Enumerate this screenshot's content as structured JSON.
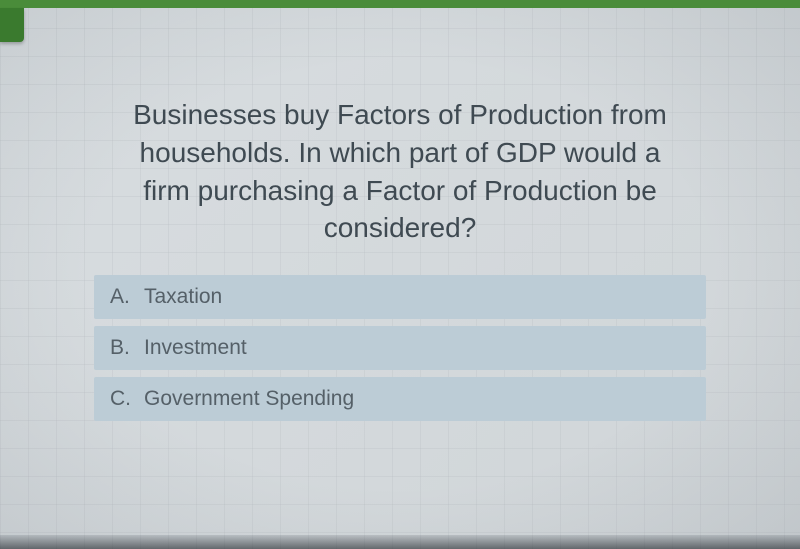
{
  "theme": {
    "background_gradient": [
      "#d8dde0",
      "#d0d5d8"
    ],
    "top_bar_color": "#4a8c3a",
    "tab_color": "#3a7a2e",
    "question_color": "#3f4a52",
    "option_bg": "#bcccd6",
    "option_text": "#556068",
    "question_fontsize": 28,
    "option_fontsize": 21
  },
  "quiz": {
    "question": "Businesses buy Factors of Production from households. In which part of GDP would a firm purchasing a Factor of Production be considered?",
    "options": [
      {
        "letter": "A.",
        "text": "Taxation"
      },
      {
        "letter": "B.",
        "text": "Investment"
      },
      {
        "letter": "C.",
        "text": "Government Spending"
      }
    ]
  }
}
